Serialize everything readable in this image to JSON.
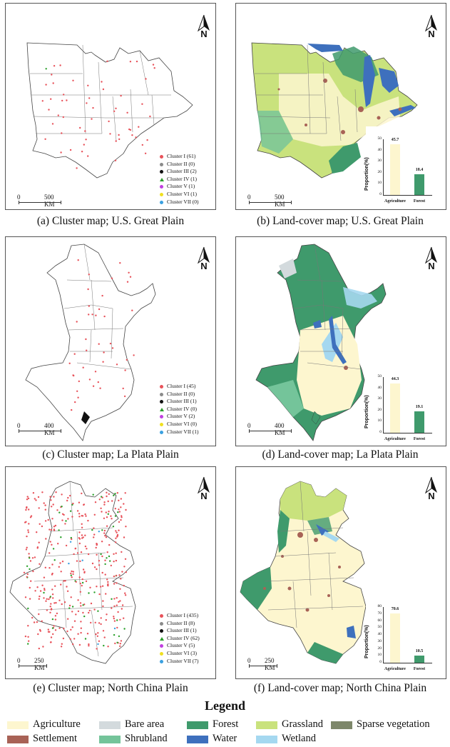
{
  "panels": [
    {
      "id": "a",
      "caption": "(a) Cluster map; U.S. Great Plain",
      "scale": {
        "zero": "0",
        "km": "500 KM"
      },
      "north": "N",
      "clusters": [
        "Cluster I (61)",
        "Cluster II (0)",
        "Cluster III (2)",
        "Cluster IV (1)",
        "Cluster V (1)",
        "Cluster VI (1)",
        "Cluster VII (0)"
      ]
    },
    {
      "id": "b",
      "caption": "(b) Land-cover map; U.S. Great Plain",
      "scale": {
        "zero": "0",
        "km": "500 KM"
      },
      "north": "N",
      "chart": {
        "ylabel": "Proportion(%)",
        "ymax": 50,
        "ticks": [
          "0",
          "10",
          "20",
          "30",
          "40",
          "50"
        ],
        "categories": [
          "Agriculture",
          "Forest"
        ],
        "values": [
          45.7,
          18.4
        ],
        "value_labels": [
          "45.7",
          "18.4"
        ]
      }
    },
    {
      "id": "c",
      "caption": "(c) Cluster map; La Plata Plain",
      "scale": {
        "zero": "0",
        "km": "400 KM"
      },
      "north": "N",
      "clusters": [
        "Cluster I (45)",
        "Cluster II (0)",
        "Cluster III (1)",
        "Cluster IV (0)",
        "Cluster V (2)",
        "Cluster VI (0)",
        "Cluster VII (1)"
      ]
    },
    {
      "id": "d",
      "caption": "(d) Land-cover map; La Plata Plain",
      "scale": {
        "zero": "0",
        "km": "400 KM"
      },
      "north": "N",
      "chart": {
        "ylabel": "Proportion(%)",
        "ymax": 50,
        "ticks": [
          "0",
          "10",
          "20",
          "30",
          "40",
          "50"
        ],
        "categories": [
          "Agriculture",
          "Forest"
        ],
        "values": [
          44.3,
          19.1
        ],
        "value_labels": [
          "44.3",
          "19.1"
        ]
      }
    },
    {
      "id": "e",
      "caption": "(e) Cluster map; North China Plain",
      "scale": {
        "zero": "0",
        "km": "250 KM"
      },
      "north": "N",
      "clusters": [
        "Cluster I (435)",
        "Cluster II (8)",
        "Cluster III (1)",
        "Cluster IV (62)",
        "Cluster V (5)",
        "Cluster VI (3)",
        "Cluster VII (7)"
      ]
    },
    {
      "id": "f",
      "caption": "(f) Land-cover map; North China Plain",
      "scale": {
        "zero": "0",
        "km": "250 KM"
      },
      "north": "N",
      "chart": {
        "ylabel": "Proportion(%)",
        "ymax": 80,
        "ticks": [
          "0",
          "10",
          "20",
          "30",
          "40",
          "50",
          "60",
          "70",
          "80"
        ],
        "categories": [
          "Agriculture",
          "Forest"
        ],
        "values": [
          70.6,
          10.5
        ],
        "value_labels": [
          "70.6",
          "10.5"
        ]
      }
    }
  ],
  "cluster_marker_colors": [
    "#e8525a",
    "#8a8a8a",
    "#111111",
    "#2aa02a",
    "#c040e0",
    "#f0e020",
    "#3aa0e0"
  ],
  "cluster_marker_shapes": [
    "circle",
    "circle",
    "circle",
    "triangle",
    "circle",
    "circle",
    "circle"
  ],
  "legend": {
    "title": "Legend",
    "items": [
      {
        "label": "Agriculture",
        "color": "#fdf6cf"
      },
      {
        "label": "Bare area",
        "color": "#d3dadd"
      },
      {
        "label": "Forest",
        "color": "#3f9a6c"
      },
      {
        "label": "Grassland",
        "color": "#c9e27d"
      },
      {
        "label": "Sparse vegetation",
        "color": "#7d876a"
      },
      {
        "label": "Settlement",
        "color": "#a86256"
      },
      {
        "label": "Shrubland",
        "color": "#74c49a"
      },
      {
        "label": "Water",
        "color": "#3e70bd"
      },
      {
        "label": "Wetland",
        "color": "#a5d8f0"
      }
    ]
  }
}
